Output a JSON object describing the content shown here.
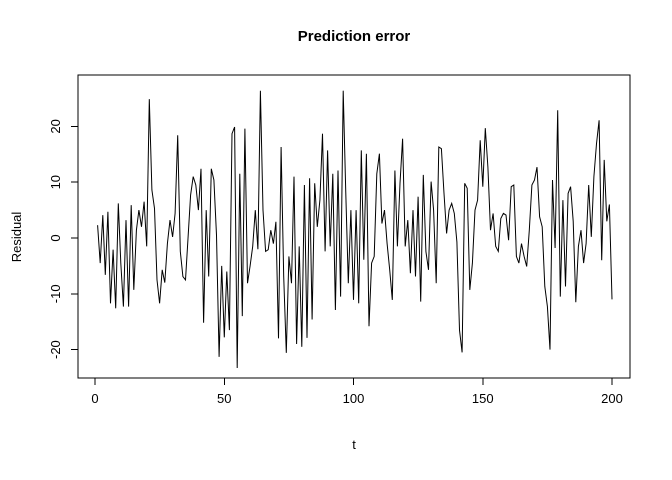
{
  "figure": {
    "kind": "r-base-plot",
    "background": "#ffffff",
    "foreground": "#000000"
  },
  "chart_data": {
    "type": "line",
    "title": "Prediction error",
    "xlabel": "t",
    "ylabel": "Residual",
    "x_ticks": [
      0,
      50,
      100,
      150,
      200
    ],
    "y_ticks": [
      -20,
      -10,
      0,
      10,
      20
    ],
    "xlim": [
      0,
      207
    ],
    "ylim": [
      -24.5,
      27.5
    ],
    "grid": false,
    "legend": null,
    "line_color": "#000000",
    "line_width": 1,
    "x_start": 1,
    "x_step": 1,
    "series_name": "prediction-error-residuals",
    "values": [
      2.3,
      -4.5,
      4.1,
      -6.6,
      4.7,
      -11.7,
      -2.1,
      -12.6,
      6.2,
      -4.5,
      -12.3,
      3.2,
      -12.3,
      5.9,
      -9.3,
      1.4,
      5.0,
      2.0,
      6.5,
      -1.5,
      24.9,
      8.6,
      5.3,
      -7.5,
      -11.7,
      -5.7,
      -8.0,
      -1.0,
      3.2,
      0.2,
      4.4,
      18.4,
      -2.4,
      -6.9,
      -7.5,
      0.2,
      7.7,
      11.0,
      9.5,
      5.0,
      12.4,
      -15.2,
      5.0,
      -6.9,
      12.4,
      10.4,
      0.5,
      -21.3,
      -5.0,
      -17.8,
      -6.0,
      -16.5,
      18.7,
      19.9,
      -23.3,
      11.5,
      -14.0,
      19.6,
      -8.1,
      -5.0,
      -1.5,
      5.0,
      -2.0,
      26.4,
      5.0,
      -2.4,
      -2.1,
      1.4,
      -1.0,
      2.9,
      -18.0,
      16.3,
      -6.9,
      -20.6,
      -3.3,
      -8.1,
      11.0,
      -19.0,
      -1.5,
      -19.5,
      9.5,
      -17.9,
      10.7,
      -14.6,
      9.8,
      2.0,
      6.8,
      18.7,
      -2.4,
      15.7,
      -1.5,
      11.5,
      -12.9,
      12.1,
      -10.5,
      26.4,
      8.6,
      -8.1,
      5.0,
      -11.1,
      5.0,
      -11.7,
      15.7,
      -3.9,
      15.1,
      -15.8,
      -4.5,
      -3.3,
      11.5,
      15.1,
      2.6,
      5.0,
      -1.0,
      -5.7,
      -11.1,
      12.1,
      -1.5,
      9.8,
      17.8,
      -1.5,
      3.2,
      -6.3,
      5.0,
      -6.9,
      7.4,
      -11.4,
      11.3,
      -2.4,
      -5.7,
      10.1,
      5.0,
      -8.1,
      16.3,
      16.0,
      8.0,
      0.8,
      5.0,
      6.2,
      4.4,
      -0.7,
      -16.5,
      -20.5,
      9.8,
      8.9,
      -9.3,
      -4.5,
      5.0,
      6.8,
      17.5,
      9.2,
      19.7,
      12.7,
      1.4,
      4.4,
      -1.5,
      -2.4,
      3.5,
      4.4,
      4.1,
      -0.4,
      9.2,
      9.5,
      -3.3,
      -4.5,
      -1.0,
      -3.3,
      -5.1,
      1.4,
      9.5,
      10.4,
      12.7,
      3.8,
      2.0,
      -8.7,
      -12.3,
      -20.0,
      10.4,
      -1.8,
      22.9,
      -10.5,
      6.8,
      -8.7,
      8.0,
      9.2,
      3.0,
      -11.5,
      -1.5,
      1.4,
      -4.5,
      -1.0,
      9.5,
      0.2,
      11.0,
      16.9,
      21.1,
      -4.0,
      14.0,
      3.0,
      6.0,
      -11.0
    ]
  }
}
